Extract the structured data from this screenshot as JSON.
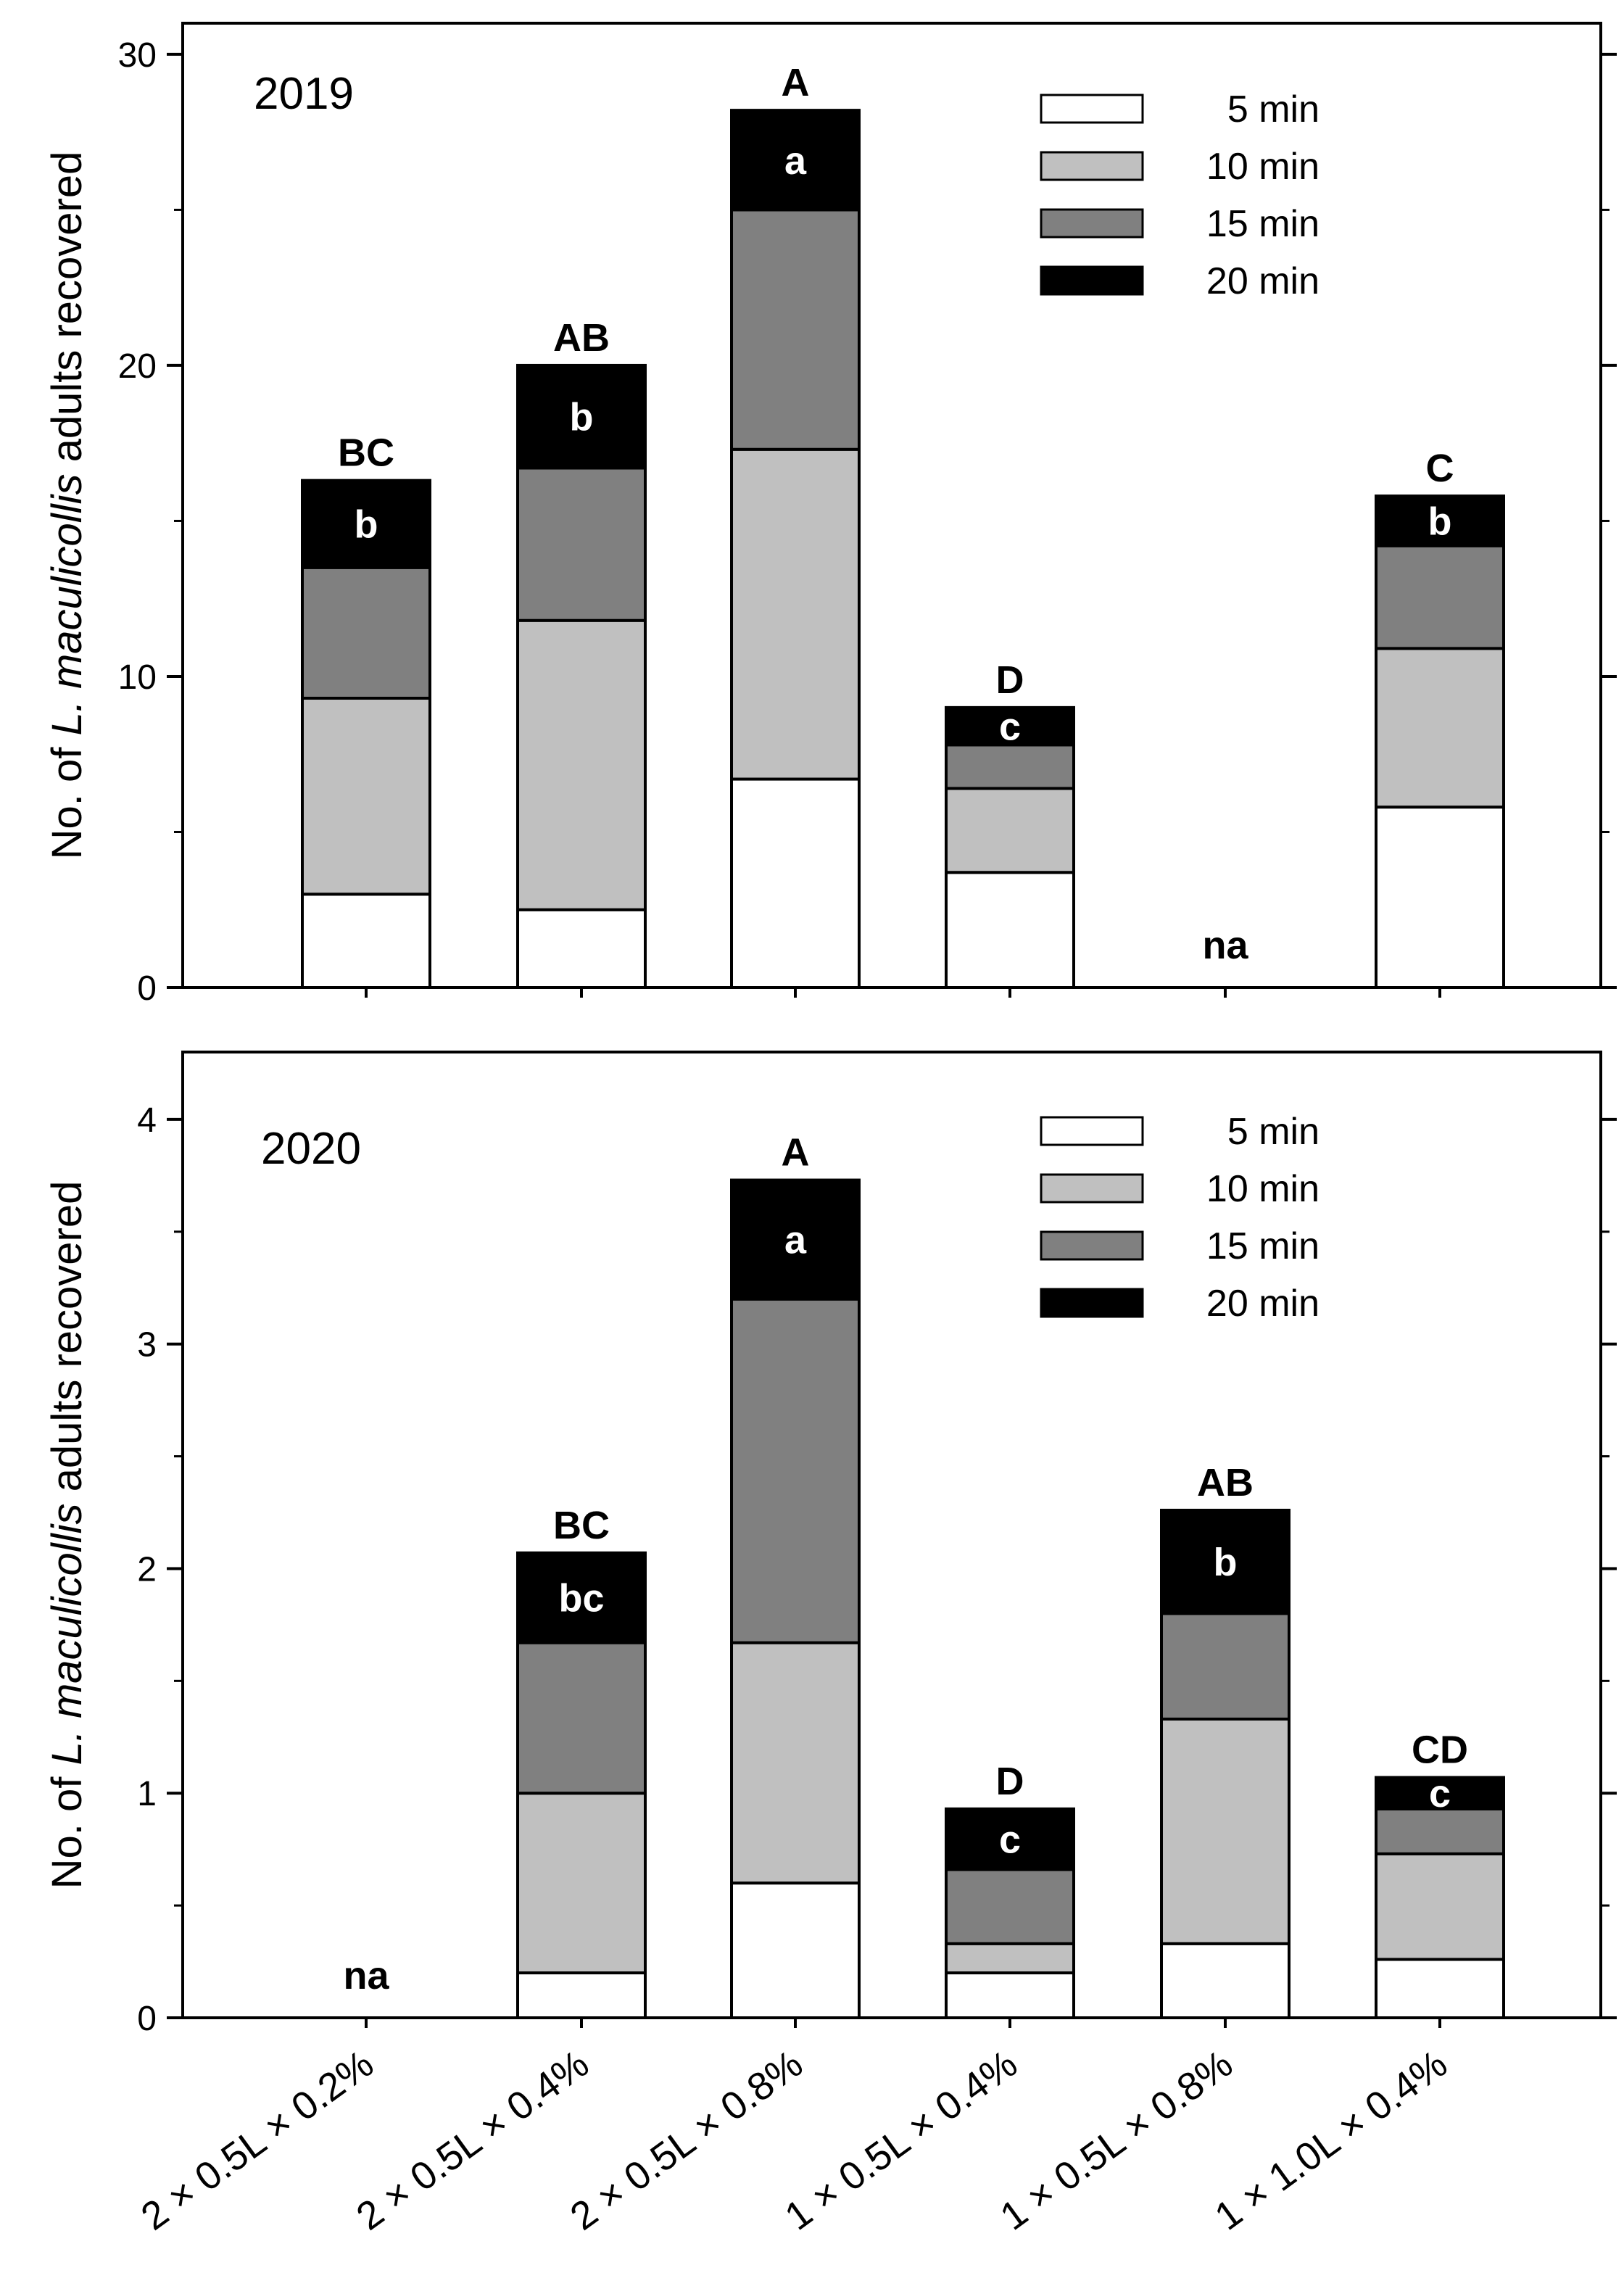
{
  "chart_data": [
    {
      "type": "bar",
      "stacked": true,
      "title": "2019",
      "xlabel": "",
      "ylabel": {
        "prefix": "No. of ",
        "italic": "L. maculicollis",
        "suffix": " adults recovered"
      },
      "ylim": [
        0,
        31
      ],
      "yticks": [
        0,
        10,
        20,
        30
      ],
      "yticks_minor": [
        5,
        15,
        25
      ],
      "categories": [
        "2 × 0.5L × 0.2%",
        "2 × 0.5L × 0.4%",
        "2 × 0.5L × 0.8%",
        "1 × 0.5L × 0.4%",
        "1 × 0.5L × 0.8%",
        "1 × 1.0L × 0.4%"
      ],
      "series": [
        {
          "name": "5 min",
          "color": "#ffffff",
          "values": [
            3.0,
            2.5,
            6.7,
            3.7,
            null,
            5.8
          ]
        },
        {
          "name": "10 min",
          "color": "#c0c0c0",
          "values": [
            6.3,
            9.3,
            10.6,
            2.7,
            null,
            5.1
          ]
        },
        {
          "name": "15 min",
          "color": "#808080",
          "values": [
            4.2,
            4.9,
            7.7,
            1.4,
            null,
            3.3
          ]
        },
        {
          "name": "20 min",
          "color": "#000000",
          "values": [
            2.8,
            3.3,
            3.2,
            1.2,
            null,
            1.6
          ]
        }
      ],
      "group_letters": [
        "BC",
        "AB",
        "A",
        "D",
        "",
        "C"
      ],
      "inner_letters": [
        "b",
        "b",
        "a",
        "c",
        "",
        "b"
      ],
      "na_label": "na",
      "na_index": 4,
      "legend_position": "top-right"
    },
    {
      "type": "bar",
      "stacked": true,
      "title": "2020",
      "xlabel": "",
      "ylabel": {
        "prefix": "No. of ",
        "italic": "L. maculicollis",
        "suffix": " adults recovered"
      },
      "ylim": [
        0,
        4.3
      ],
      "yticks": [
        0,
        1,
        2,
        3,
        4
      ],
      "yticks_minor": [
        0.5,
        1.5,
        2.5,
        3.5
      ],
      "categories": [
        "2 × 0.5L × 0.2%",
        "2 × 0.5L × 0.4%",
        "2 × 0.5L × 0.8%",
        "1 × 0.5L × 0.4%",
        "1 × 0.5L × 0.8%",
        "1 × 1.0L × 0.4%"
      ],
      "series": [
        {
          "name": "5 min",
          "color": "#ffffff",
          "values": [
            null,
            0.2,
            0.6,
            0.2,
            0.33,
            0.26
          ]
        },
        {
          "name": "10 min",
          "color": "#c0c0c0",
          "values": [
            null,
            0.8,
            1.07,
            0.13,
            1.0,
            0.47
          ]
        },
        {
          "name": "15 min",
          "color": "#808080",
          "values": [
            null,
            0.67,
            1.53,
            0.33,
            0.47,
            0.2
          ]
        },
        {
          "name": "20 min",
          "color": "#000000",
          "values": [
            null,
            0.4,
            0.53,
            0.27,
            0.46,
            0.14
          ]
        }
      ],
      "group_letters": [
        "",
        "BC",
        "A",
        "D",
        "AB",
        "CD"
      ],
      "inner_letters": [
        "",
        "bc",
        "a",
        "c",
        "b",
        "c"
      ],
      "na_label": "na",
      "na_index": 0,
      "legend_position": "top-right"
    }
  ]
}
